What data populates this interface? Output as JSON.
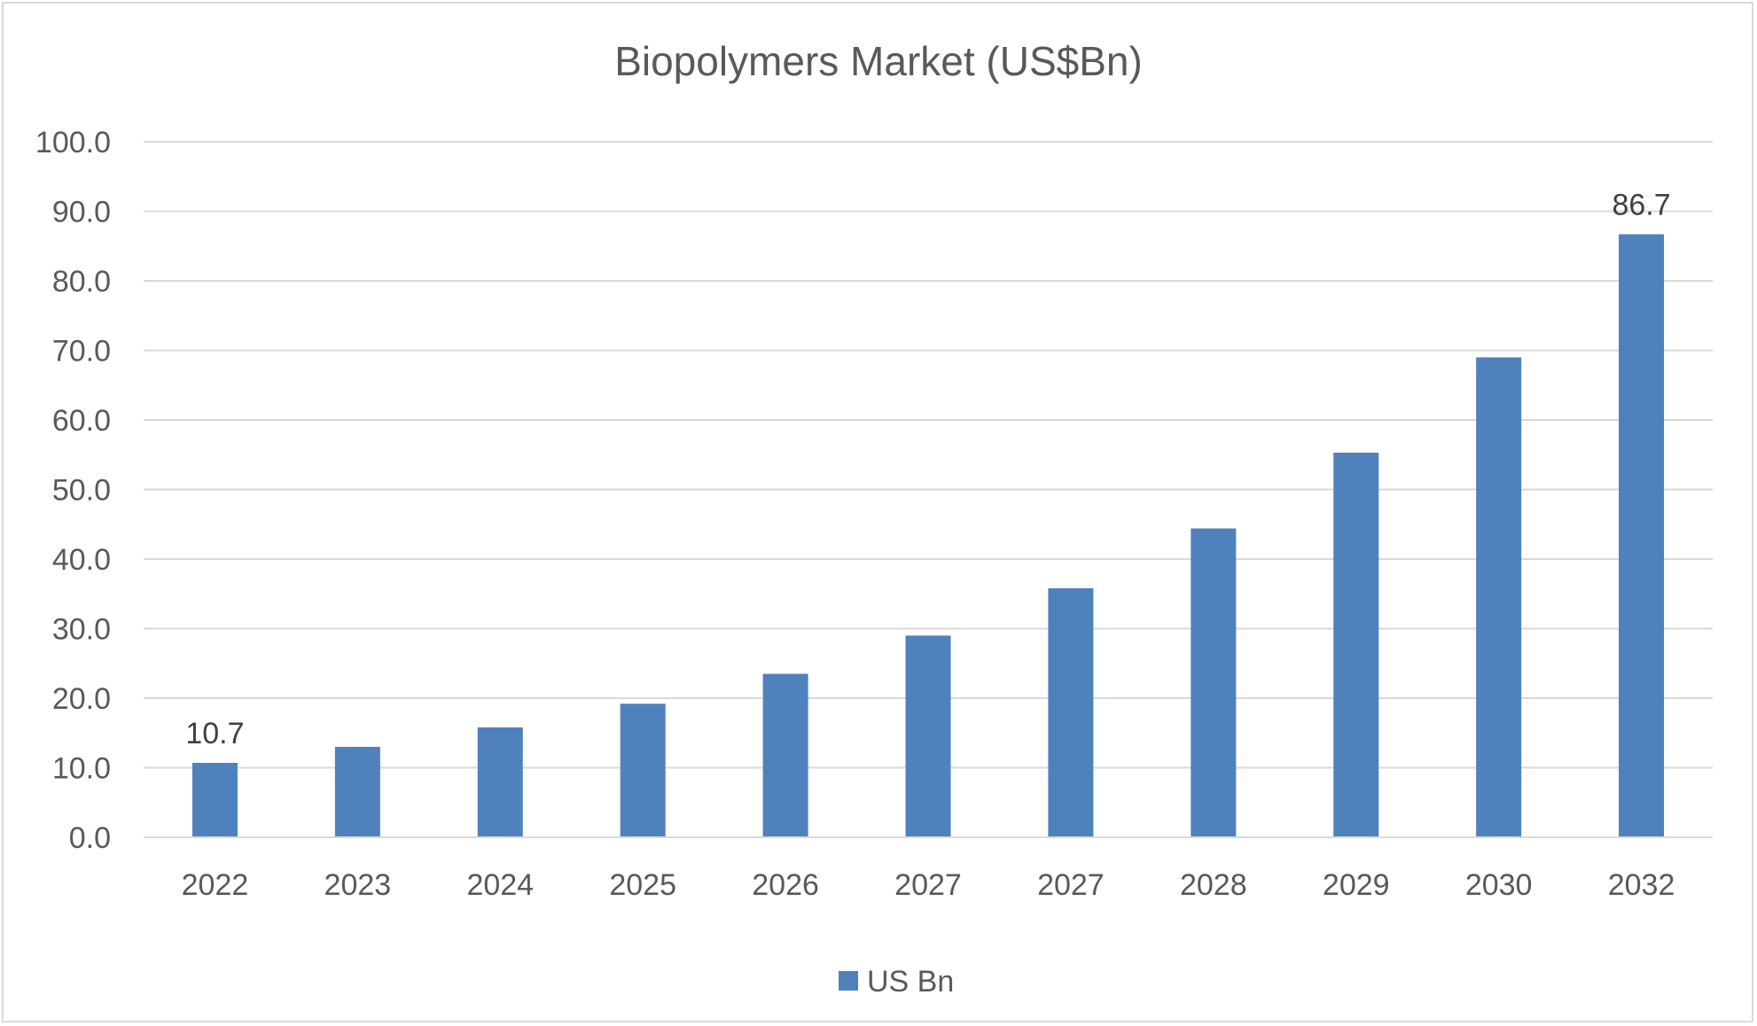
{
  "chart_data": {
    "type": "bar",
    "title": "Biopolymers  Market (US$Bn)",
    "xlabel": "",
    "ylabel": "",
    "categories": [
      "2022",
      "2023",
      "2024",
      "2025",
      "2026",
      "2027",
      "2027",
      "2028",
      "2029",
      "2030",
      "2032"
    ],
    "series": [
      {
        "name": "US Bn",
        "color": "#4F81BD",
        "values": [
          10.7,
          13.0,
          15.8,
          19.2,
          23.5,
          29.0,
          35.8,
          44.4,
          55.3,
          69.0,
          86.7
        ]
      }
    ],
    "data_labels": [
      {
        "category_index": 0,
        "text": "10.7"
      },
      {
        "category_index": 10,
        "text": "86.7"
      }
    ],
    "ylim": [
      0,
      100
    ],
    "y_ticks": [
      "0.0",
      "10.0",
      "20.0",
      "30.0",
      "40.0",
      "50.0",
      "60.0",
      "70.0",
      "80.0",
      "90.0",
      "100.0"
    ],
    "y_tick_values": [
      0,
      10,
      20,
      30,
      40,
      50,
      60,
      70,
      80,
      90,
      100
    ],
    "grid": true,
    "legend_position": "bottom"
  }
}
